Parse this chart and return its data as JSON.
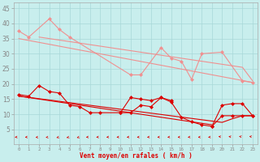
{
  "xlabel": "Vent moyen/en rafales ( km/h )",
  "bg_color": "#c8eeed",
  "grid_color": "#a8d8d8",
  "light_color": "#f09090",
  "dark_color": "#dd0000",
  "ylim": [
    0,
    47
  ],
  "yticks": [
    5,
    10,
    15,
    20,
    25,
    30,
    35,
    40,
    45
  ],
  "xlim": [
    -0.5,
    23.5
  ],
  "xticks": [
    0,
    1,
    2,
    3,
    4,
    5,
    6,
    7,
    8,
    9,
    10,
    11,
    12,
    13,
    14,
    15,
    16,
    17,
    18,
    19,
    20,
    21,
    22,
    23
  ],
  "light_lines": [
    {
      "x": [
        0,
        1,
        3,
        4,
        5,
        11,
        12,
        14,
        15,
        16,
        17,
        18,
        20,
        22,
        23
      ],
      "y": [
        37.5,
        35.5,
        41.5,
        38.0,
        35.5,
        23.0,
        23.0,
        32.0,
        28.5,
        27.5,
        21.5,
        30.0,
        30.5,
        21.0,
        20.5
      ],
      "marker": true
    },
    {
      "x": [
        0,
        1,
        2,
        3,
        4,
        5,
        6,
        7,
        8,
        9,
        10,
        11,
        12,
        13,
        14,
        15,
        16,
        17,
        18,
        19,
        20,
        21,
        22,
        23
      ],
      "y": [
        35.0,
        34.37,
        33.74,
        33.11,
        32.48,
        31.85,
        31.22,
        30.59,
        29.96,
        29.33,
        28.7,
        28.07,
        27.44,
        26.81,
        26.18,
        25.55,
        24.92,
        24.29,
        23.66,
        23.03,
        22.4,
        21.77,
        21.14,
        20.5
      ],
      "marker": false
    },
    {
      "x": [
        2,
        3,
        4,
        5,
        6,
        7,
        8,
        9,
        10,
        11,
        12,
        13,
        14,
        15,
        16,
        17,
        18,
        19,
        20,
        21,
        22,
        23
      ],
      "y": [
        35.5,
        35.0,
        34.5,
        34.0,
        33.5,
        33.0,
        32.5,
        32.0,
        31.5,
        31.0,
        30.5,
        30.0,
        29.5,
        29.0,
        28.5,
        28.0,
        27.5,
        27.0,
        26.5,
        26.0,
        25.5,
        21.0
      ],
      "marker": false
    }
  ],
  "dark_lines": [
    {
      "x": [
        0,
        1,
        2,
        3,
        4,
        5,
        6,
        7,
        8,
        10,
        11,
        12,
        13,
        14,
        15
      ],
      "y": [
        16.5,
        16.0,
        19.5,
        17.5,
        17.0,
        13.0,
        12.5,
        10.5,
        10.5,
        10.5,
        10.5,
        13.0,
        12.5,
        15.5,
        14.5
      ],
      "marker": true
    },
    {
      "x": [
        0,
        1,
        2,
        3,
        4,
        5,
        6,
        7,
        8,
        9,
        10,
        11,
        12,
        13,
        14,
        15,
        16,
        17,
        18,
        19,
        20,
        21,
        22,
        23
      ],
      "y": [
        16.0,
        15.57,
        15.13,
        14.7,
        14.26,
        13.83,
        13.39,
        12.96,
        12.52,
        12.09,
        11.65,
        11.22,
        10.78,
        10.35,
        9.91,
        9.48,
        9.04,
        8.61,
        8.17,
        7.74,
        7.3,
        8.5,
        9.5,
        9.5
      ],
      "marker": false
    },
    {
      "x": [
        0,
        1,
        2,
        3,
        4,
        5,
        6,
        7,
        8,
        9,
        10,
        11,
        12,
        13,
        14,
        15,
        16,
        17,
        18,
        19
      ],
      "y": [
        16.0,
        15.5,
        15.0,
        14.5,
        14.0,
        13.5,
        13.0,
        12.5,
        12.0,
        11.5,
        11.0,
        10.5,
        10.0,
        9.5,
        9.0,
        8.5,
        8.0,
        7.5,
        7.0,
        6.5
      ],
      "marker": false
    },
    {
      "x": [
        10,
        11,
        12,
        13,
        14,
        15,
        16,
        17,
        18,
        19,
        20,
        21,
        22,
        23
      ],
      "y": [
        10.5,
        15.5,
        15.0,
        14.5,
        15.5,
        14.0,
        9.0,
        7.5,
        6.5,
        6.0,
        13.0,
        13.5,
        13.5,
        9.5
      ],
      "marker": true
    },
    {
      "x": [
        19,
        20,
        21,
        22,
        23
      ],
      "y": [
        6.0,
        9.5,
        9.5,
        9.5,
        9.5
      ],
      "marker": true
    }
  ],
  "arrows": {
    "angles_deg": [
      195,
      195,
      210,
      210,
      225,
      225,
      225,
      195,
      195,
      195,
      195,
      195,
      195,
      195,
      195,
      195,
      195,
      195,
      195,
      195,
      160,
      160,
      150,
      150
    ],
    "y": 2.5
  },
  "marker_size": 2.5,
  "lw": 0.8
}
